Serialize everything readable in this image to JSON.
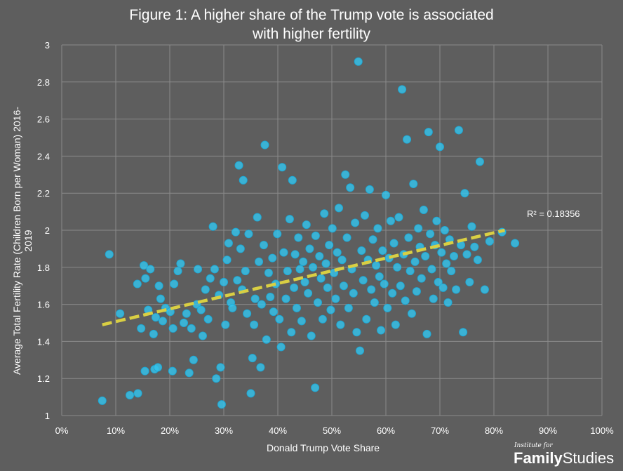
{
  "chart_data": {
    "type": "scatter",
    "title_lines": [
      "Figure 1: A higher share of the Trump vote is associated",
      "with higher fertility"
    ],
    "xlabel": "Donald Trump Vote Share",
    "ylabel": "Average Total Fertility Rate (Children Born per Woman) 2016-2019",
    "xlim": [
      0,
      100
    ],
    "ylim": [
      1,
      3
    ],
    "x_ticks": [
      "0%",
      "10%",
      "20%",
      "30%",
      "40%",
      "50%",
      "60%",
      "70%",
      "80%",
      "90%",
      "100%"
    ],
    "y_ticks": [
      "1",
      "1.2",
      "1.4",
      "1.6",
      "1.8",
      "2",
      "2.2",
      "2.4",
      "2.6",
      "2.8",
      "3"
    ],
    "grid": true,
    "colors": {
      "point": "#33c4ee",
      "point_stroke": "#1aa6d4",
      "trend": "#d9cf43",
      "background": "#5e5e5e",
      "grid": "#8a8a8a"
    },
    "trendline": {
      "x": [
        7.5,
        82
      ],
      "y": [
        1.49,
        2.0
      ],
      "label": "R² = 0.18356"
    },
    "points": [
      [
        7.5,
        1.08
      ],
      [
        8.8,
        1.87
      ],
      [
        10.8,
        1.55
      ],
      [
        12.6,
        1.11
      ],
      [
        14.1,
        1.12
      ],
      [
        14.0,
        1.71
      ],
      [
        14.7,
        1.47
      ],
      [
        15.2,
        1.81
      ],
      [
        15.5,
        1.74
      ],
      [
        15.4,
        1.24
      ],
      [
        16.0,
        1.57
      ],
      [
        16.4,
        1.79
      ],
      [
        17.0,
        1.44
      ],
      [
        17.2,
        1.25
      ],
      [
        17.4,
        1.53
      ],
      [
        17.8,
        1.26
      ],
      [
        18.0,
        1.7
      ],
      [
        18.3,
        1.63
      ],
      [
        18.7,
        1.51
      ],
      [
        19.2,
        1.58
      ],
      [
        20.1,
        1.56
      ],
      [
        20.6,
        1.47
      ],
      [
        20.5,
        1.24
      ],
      [
        20.8,
        1.71
      ],
      [
        21.5,
        1.78
      ],
      [
        22.0,
        1.82
      ],
      [
        22.6,
        1.5
      ],
      [
        23.1,
        1.55
      ],
      [
        23.6,
        1.23
      ],
      [
        24.0,
        1.47
      ],
      [
        24.4,
        1.3
      ],
      [
        25.0,
        1.6
      ],
      [
        25.2,
        1.79
      ],
      [
        25.8,
        1.57
      ],
      [
        26.1,
        1.43
      ],
      [
        26.6,
        1.68
      ],
      [
        27.1,
        1.52
      ],
      [
        27.5,
        1.74
      ],
      [
        28.0,
        2.02
      ],
      [
        28.3,
        1.79
      ],
      [
        28.6,
        1.2
      ],
      [
        29.1,
        1.65
      ],
      [
        29.4,
        1.26
      ],
      [
        29.6,
        1.06
      ],
      [
        30.0,
        1.72
      ],
      [
        30.3,
        1.49
      ],
      [
        30.6,
        1.84
      ],
      [
        30.9,
        1.93
      ],
      [
        31.3,
        1.61
      ],
      [
        31.6,
        1.58
      ],
      [
        32.2,
        1.99
      ],
      [
        32.5,
        1.73
      ],
      [
        32.8,
        2.35
      ],
      [
        33.1,
        1.9
      ],
      [
        33.4,
        1.68
      ],
      [
        33.6,
        2.27
      ],
      [
        34.0,
        1.78
      ],
      [
        34.3,
        1.55
      ],
      [
        34.6,
        1.98
      ],
      [
        35.0,
        1.12
      ],
      [
        35.3,
        1.31
      ],
      [
        35.6,
        1.49
      ],
      [
        35.8,
        1.63
      ],
      [
        36.2,
        2.07
      ],
      [
        36.5,
        1.83
      ],
      [
        36.8,
        1.26
      ],
      [
        37.0,
        1.6
      ],
      [
        37.4,
        1.92
      ],
      [
        37.6,
        2.46
      ],
      [
        37.9,
        1.41
      ],
      [
        38.3,
        1.77
      ],
      [
        38.6,
        1.64
      ],
      [
        39.0,
        1.85
      ],
      [
        39.2,
        1.56
      ],
      [
        39.6,
        1.71
      ],
      [
        39.9,
        1.98
      ],
      [
        40.3,
        1.52
      ],
      [
        40.6,
        1.37
      ],
      [
        40.8,
        2.34
      ],
      [
        41.1,
        1.88
      ],
      [
        41.5,
        1.63
      ],
      [
        41.8,
        1.78
      ],
      [
        42.2,
        2.06
      ],
      [
        42.5,
        1.45
      ],
      [
        42.7,
        2.27
      ],
      [
        43.0,
        1.69
      ],
      [
        43.2,
        1.87
      ],
      [
        43.5,
        1.58
      ],
      [
        43.8,
        1.96
      ],
      [
        44.1,
        1.79
      ],
      [
        44.4,
        1.51
      ],
      [
        44.7,
        1.83
      ],
      [
        45.0,
        1.72
      ],
      [
        45.3,
        2.03
      ],
      [
        45.6,
        1.66
      ],
      [
        45.9,
        1.9
      ],
      [
        46.2,
        1.43
      ],
      [
        46.5,
        1.8
      ],
      [
        46.9,
        1.15
      ],
      [
        47.0,
        1.97
      ],
      [
        47.4,
        1.61
      ],
      [
        47.7,
        1.86
      ],
      [
        48.0,
        1.74
      ],
      [
        48.3,
        1.52
      ],
      [
        48.6,
        2.09
      ],
      [
        48.9,
        1.82
      ],
      [
        49.2,
        1.69
      ],
      [
        49.5,
        1.92
      ],
      [
        49.8,
        1.57
      ],
      [
        50.1,
        2.01
      ],
      [
        50.4,
        1.77
      ],
      [
        50.7,
        1.63
      ],
      [
        51.0,
        1.88
      ],
      [
        51.3,
        2.12
      ],
      [
        51.6,
        1.49
      ],
      [
        51.9,
        1.84
      ],
      [
        52.2,
        1.7
      ],
      [
        52.5,
        2.3
      ],
      [
        52.8,
        1.96
      ],
      [
        53.1,
        1.58
      ],
      [
        53.4,
        2.23
      ],
      [
        53.7,
        1.79
      ],
      [
        54.0,
        1.66
      ],
      [
        54.3,
        2.04
      ],
      [
        54.6,
        1.45
      ],
      [
        54.9,
        2.91
      ],
      [
        55.2,
        1.35
      ],
      [
        55.5,
        1.89
      ],
      [
        55.8,
        1.73
      ],
      [
        56.1,
        2.08
      ],
      [
        56.4,
        1.52
      ],
      [
        56.7,
        1.84
      ],
      [
        57.0,
        2.22
      ],
      [
        57.3,
        1.68
      ],
      [
        57.6,
        1.95
      ],
      [
        57.9,
        1.61
      ],
      [
        58.2,
        1.81
      ],
      [
        58.5,
        2.01
      ],
      [
        58.8,
        1.75
      ],
      [
        59.1,
        1.46
      ],
      [
        59.4,
        1.89
      ],
      [
        59.7,
        1.71
      ],
      [
        60.0,
        2.19
      ],
      [
        60.3,
        1.58
      ],
      [
        60.6,
        1.85
      ],
      [
        60.9,
        2.05
      ],
      [
        61.2,
        1.66
      ],
      [
        61.5,
        1.93
      ],
      [
        61.8,
        1.49
      ],
      [
        62.1,
        1.8
      ],
      [
        62.4,
        2.07
      ],
      [
        62.7,
        1.7
      ],
      [
        63.0,
        2.76
      ],
      [
        63.3,
        1.87
      ],
      [
        63.6,
        1.62
      ],
      [
        63.9,
        2.49
      ],
      [
        64.2,
        1.96
      ],
      [
        64.5,
        1.78
      ],
      [
        64.8,
        1.55
      ],
      [
        65.1,
        2.25
      ],
      [
        65.4,
        1.83
      ],
      [
        65.7,
        1.67
      ],
      [
        66.0,
        2.01
      ],
      [
        66.3,
        1.91
      ],
      [
        66.6,
        1.74
      ],
      [
        67.0,
        2.11
      ],
      [
        67.3,
        1.86
      ],
      [
        67.6,
        1.44
      ],
      [
        67.9,
        2.53
      ],
      [
        68.2,
        1.98
      ],
      [
        68.5,
        1.79
      ],
      [
        68.8,
        1.63
      ],
      [
        69.1,
        1.92
      ],
      [
        69.4,
        2.05
      ],
      [
        69.7,
        1.72
      ],
      [
        70.0,
        2.45
      ],
      [
        70.3,
        1.88
      ],
      [
        70.6,
        1.69
      ],
      [
        70.9,
        2.0
      ],
      [
        71.2,
        1.82
      ],
      [
        71.5,
        1.61
      ],
      [
        71.8,
        1.95
      ],
      [
        72.1,
        1.78
      ],
      [
        72.6,
        1.86
      ],
      [
        73.0,
        1.68
      ],
      [
        73.5,
        2.54
      ],
      [
        73.9,
        1.92
      ],
      [
        74.3,
        1.45
      ],
      [
        74.6,
        2.2
      ],
      [
        75.0,
        1.87
      ],
      [
        75.5,
        1.72
      ],
      [
        75.9,
        2.02
      ],
      [
        76.4,
        1.91
      ],
      [
        77.0,
        1.84
      ],
      [
        77.4,
        2.37
      ],
      [
        78.3,
        1.68
      ],
      [
        79.2,
        1.94
      ],
      [
        81.5,
        1.99
      ],
      [
        83.9,
        1.93
      ]
    ]
  },
  "brand": {
    "small": "Institute for",
    "bold": "Family",
    "rest": "Studies"
  }
}
